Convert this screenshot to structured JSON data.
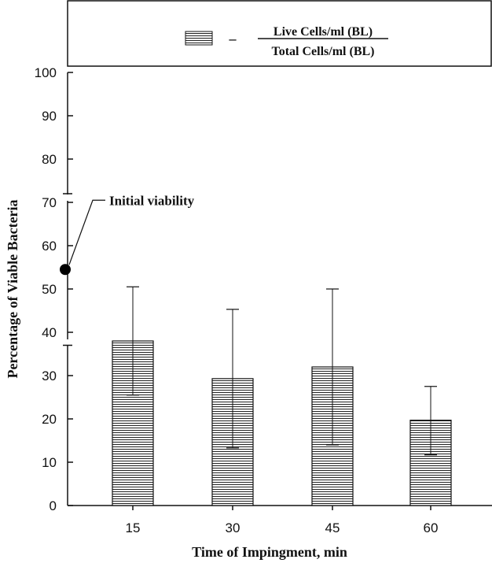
{
  "chart_data": {
    "type": "bar",
    "legend": {
      "numerator": "Live Cells/ml (BL)",
      "denominator": "Total Cells/ml (BL)",
      "dash": "–"
    },
    "xlabel": "Time of Impingment, min",
    "ylabel": "Percentage of Viable Bacteria",
    "ylim": [
      0,
      100
    ],
    "yticks": [
      "0",
      "10",
      "20",
      "30",
      "40",
      "50",
      "60",
      "70",
      "80",
      "90",
      "100"
    ],
    "categories": [
      "15",
      "30",
      "45",
      "60"
    ],
    "values": [
      38,
      29.3,
      32,
      19.7
    ],
    "error_upper": [
      50.5,
      45.3,
      50,
      27.5
    ],
    "error_lower": [
      25.5,
      13.3,
      14,
      11.7
    ],
    "annotation": {
      "label": "Initial viability",
      "value": 54.5,
      "range_low": 37,
      "range_high": 72
    },
    "bar_pattern": "horizontal-lines",
    "colors": {
      "ink": "#111111",
      "background": "#ffffff"
    }
  }
}
